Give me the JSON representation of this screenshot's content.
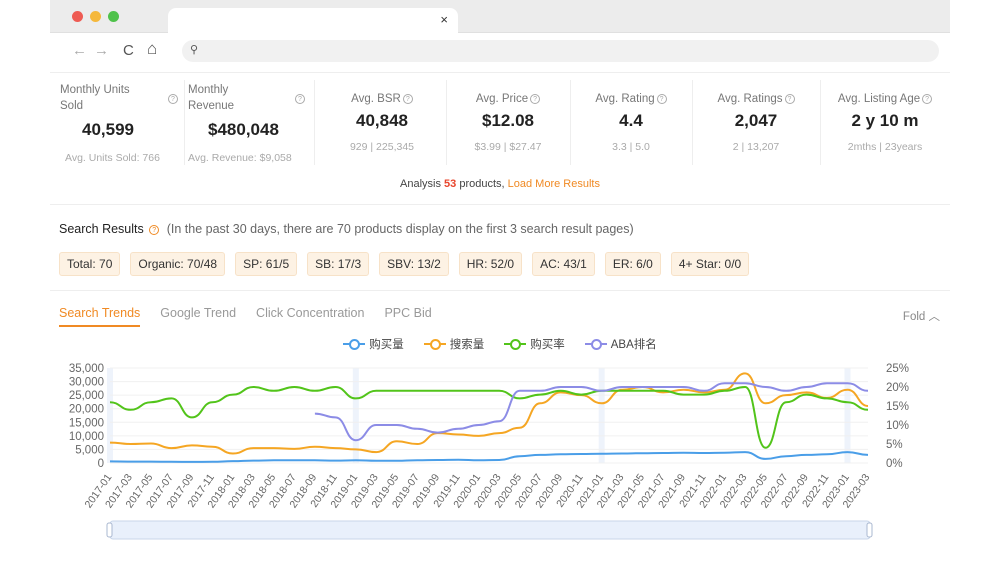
{
  "window": {
    "traffic_lights": [
      "#ee5b53",
      "#f5b83b",
      "#4fc24b"
    ],
    "tab_close": "×"
  },
  "addressbar": {
    "back": "←",
    "forward": "→",
    "reload": "C",
    "home": "⌂",
    "search_glyph": "⚲"
  },
  "stats": [
    {
      "label": "Monthly Units Sold",
      "value": "40,599",
      "sub": "Avg. Units Sold: 766"
    },
    {
      "label": "Monthly Revenue",
      "value": "$480,048",
      "sub": "Avg. Revenue: $9,058"
    },
    {
      "label": "Avg. BSR",
      "value": "40,848",
      "sub": "929 | 225,345"
    },
    {
      "label": "Avg. Price",
      "value": "$12.08",
      "sub": "$3.99 | $27.47"
    },
    {
      "label": "Avg. Rating",
      "value": "4.4",
      "sub": "3.3 | 5.0"
    },
    {
      "label": "Avg. Ratings",
      "value": "2,047",
      "sub": "2 | 13,207"
    },
    {
      "label": "Avg. Listing Age",
      "value": "2 y 10 m",
      "sub": "2mths | 23years"
    }
  ],
  "analysis": {
    "prefix": "Analysis ",
    "count": "53",
    "middle": " products, ",
    "link": "Load More Results"
  },
  "search_results": {
    "title": "Search Results",
    "note": "(In the past 30 days, there are 70 products display on the first 3 search result pages)",
    "chips": [
      "Total: 70",
      "Organic: 70/48",
      "SP: 61/5",
      "SB: 17/3",
      "SBV: 13/2",
      "HR: 52/0",
      "AC: 43/1",
      "ER: 6/0",
      "4+ Star: 0/0"
    ]
  },
  "tabs": [
    "Search Trends",
    "Google Trend",
    "Click Concentration",
    "PPC Bid"
  ],
  "fold": "Fold",
  "colors": {
    "accent": "#f08a24",
    "blue": "#4a9ee8",
    "orange": "#f5a623",
    "green": "#52c41a",
    "purple": "#8c8ce6"
  },
  "chart_data": {
    "type": "line",
    "legend": [
      "购买量",
      "搜索量",
      "购买率",
      "ABA排名"
    ],
    "x": [
      "2017-01",
      "2017-03",
      "2017-05",
      "2017-07",
      "2017-09",
      "2017-11",
      "2018-01",
      "2018-03",
      "2018-05",
      "2018-07",
      "2018-09",
      "2018-11",
      "2019-01",
      "2019-03",
      "2019-05",
      "2019-07",
      "2019-09",
      "2019-11",
      "2020-01",
      "2020-03",
      "2020-05",
      "2020-07",
      "2020-09",
      "2020-11",
      "2021-01",
      "2021-03",
      "2021-05",
      "2021-07",
      "2021-09",
      "2021-11",
      "2022-01",
      "2022-03",
      "2022-05",
      "2022-07",
      "2022-09",
      "2022-11",
      "2023-01",
      "2023-03"
    ],
    "y_left_ticks": [
      "35,000",
      "30,000",
      "25,000",
      "20,000",
      "15,000",
      "10,000",
      "5,000",
      "0"
    ],
    "y_right_ticks": [
      "25%",
      "20%",
      "15%",
      "10%",
      "5%",
      "0%"
    ],
    "ylim_left": [
      0,
      35000
    ],
    "ylim_right": [
      0,
      25
    ],
    "grid": true,
    "legend_position": "top-center",
    "series": [
      {
        "name": "购买量",
        "axis": "left",
        "values": [
          600,
          500,
          500,
          450,
          400,
          450,
          700,
          900,
          1000,
          1000,
          1000,
          900,
          1000,
          800,
          800,
          1000,
          1100,
          1200,
          1000,
          1100,
          2500,
          3000,
          3200,
          3300,
          3400,
          3500,
          3600,
          3700,
          3800,
          3700,
          3800,
          4000,
          1500,
          2500,
          3000,
          3200,
          4000,
          3000
        ]
      },
      {
        "name": "搜索量",
        "axis": "left",
        "values": [
          7500,
          7000,
          7200,
          5500,
          6500,
          6000,
          3500,
          5500,
          5500,
          5200,
          6000,
          5500,
          5000,
          4000,
          8000,
          7000,
          11000,
          10500,
          10000,
          11000,
          13000,
          22000,
          26000,
          25000,
          22000,
          27000,
          28000,
          26000,
          27000,
          26000,
          27000,
          33000,
          22000,
          25000,
          26000,
          24000,
          27000,
          21000
        ]
      },
      {
        "name": "购买率",
        "axis": "right",
        "values": [
          16,
          14,
          16,
          17,
          12,
          16,
          18,
          20,
          19,
          20,
          19,
          20,
          17,
          19,
          19,
          19,
          19,
          19,
          19,
          19,
          17,
          18,
          19,
          18,
          19,
          19,
          19,
          19,
          18,
          18,
          19,
          20,
          4,
          16,
          18,
          17,
          16,
          14
        ]
      },
      {
        "name": "ABA排名",
        "axis": "right",
        "values": [
          null,
          null,
          null,
          null,
          null,
          null,
          null,
          null,
          null,
          null,
          13,
          12,
          6,
          10,
          10,
          9,
          8,
          9,
          10,
          11,
          19,
          19,
          20,
          20,
          19,
          20,
          20,
          20,
          20,
          19,
          21,
          21,
          20,
          19,
          20,
          21,
          21,
          19
        ]
      }
    ]
  }
}
